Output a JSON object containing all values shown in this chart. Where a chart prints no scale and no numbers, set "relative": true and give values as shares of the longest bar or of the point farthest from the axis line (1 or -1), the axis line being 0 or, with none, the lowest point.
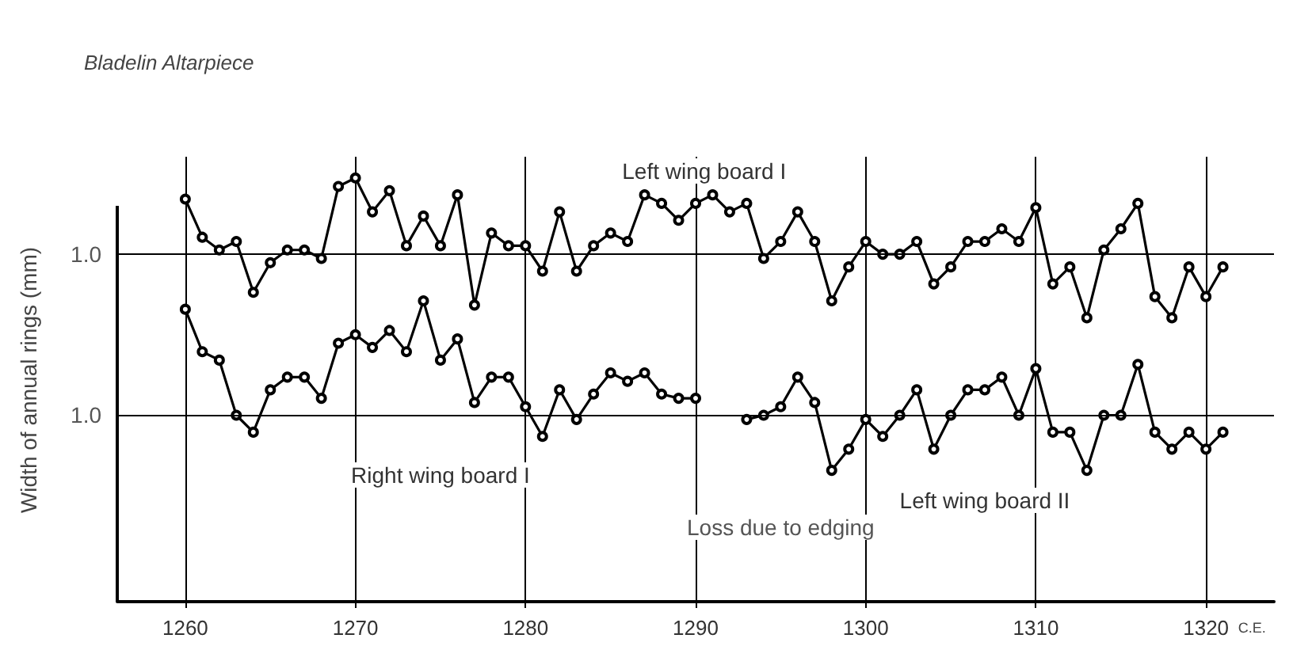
{
  "chart_data": {
    "type": "line",
    "title": "Bladelin Altarpiece",
    "ylabel": "Width of annual rings (mm)",
    "xlabel": "C.E.",
    "relative": true,
    "xlim": [
      1256,
      1324
    ],
    "xticks": [
      1260,
      1270,
      1280,
      1290,
      1300,
      1310,
      1320
    ],
    "grid": "x",
    "marker": "circle",
    "line_style": "solid",
    "legend": false,
    "ref_lines": [
      {
        "axis": "y",
        "value": 0.82,
        "color": "#000000"
      },
      {
        "axis": "y",
        "value": 0.44,
        "color": "#000000"
      }
    ],
    "annotations": [
      {
        "text": "1.0",
        "x": 1256,
        "y": 0.82
      },
      {
        "text": "1.0",
        "x": 1256,
        "y": 0.44
      },
      "Loss due to edging"
    ],
    "series": [
      {
        "name": "Left wing board I",
        "color": "#000000",
        "x": [
          1260,
          1261,
          1262,
          1263,
          1264,
          1265,
          1266,
          1267,
          1268,
          1269,
          1270,
          1271,
          1272,
          1273,
          1274,
          1275,
          1276,
          1277,
          1278,
          1279,
          1280,
          1281,
          1282,
          1283,
          1284,
          1285,
          1286,
          1287,
          1288,
          1289,
          1290,
          1291,
          1292,
          1293,
          1294,
          1295,
          1296,
          1297,
          1298,
          1299,
          1300,
          1301,
          1302,
          1303,
          1304,
          1305,
          1306,
          1307,
          1308,
          1309,
          1310,
          1311,
          1312,
          1313,
          1314,
          1315,
          1316,
          1317,
          1318,
          1319,
          1320,
          1321
        ],
        "values": [
          0.95,
          0.86,
          0.83,
          0.85,
          0.73,
          0.8,
          0.83,
          0.83,
          0.81,
          0.98,
          1,
          0.92,
          0.97,
          0.84,
          0.91,
          0.84,
          0.96,
          0.7,
          0.87,
          0.84,
          0.84,
          0.78,
          0.92,
          0.78,
          0.84,
          0.87,
          0.85,
          0.96,
          0.94,
          0.9,
          0.94,
          0.96,
          0.92,
          0.94,
          0.81,
          0.85,
          0.92,
          0.85,
          0.71,
          0.79,
          0.85,
          0.82,
          0.82,
          0.85,
          0.75,
          0.79,
          0.85,
          0.85,
          0.88,
          0.85,
          0.93,
          0.75,
          0.79,
          0.67,
          0.83,
          0.88,
          0.94,
          0.72,
          0.67,
          0.79,
          0.72,
          0.79
        ]
      },
      {
        "name": "Right wing board I",
        "color": "#000000",
        "x": [
          1260,
          1261,
          1262,
          1263,
          1264,
          1265,
          1266,
          1267,
          1268,
          1269,
          1270,
          1271,
          1272,
          1273,
          1274,
          1275,
          1276,
          1277,
          1278,
          1279,
          1280,
          1281,
          1282,
          1283,
          1284,
          1285,
          1286,
          1287,
          1288,
          1289,
          1290
        ],
        "values": [
          0.69,
          0.59,
          0.57,
          0.44,
          0.4,
          0.5,
          0.53,
          0.53,
          0.48,
          0.61,
          0.63,
          0.6,
          0.64,
          0.59,
          0.71,
          0.57,
          0.62,
          0.47,
          0.53,
          0.53,
          0.46,
          0.39,
          0.5,
          0.43,
          0.49,
          0.54,
          0.52,
          0.54,
          0.49,
          0.48,
          0.48
        ]
      },
      {
        "name": "Left wing board II",
        "color": "#000000",
        "x": [
          1293,
          1294,
          1295,
          1296,
          1297,
          1298,
          1299,
          1300,
          1301,
          1302,
          1303,
          1304,
          1305,
          1306,
          1307,
          1308,
          1309,
          1310,
          1311,
          1312,
          1313,
          1314,
          1315,
          1316,
          1317,
          1318,
          1319,
          1320,
          1321
        ],
        "values": [
          0.43,
          0.44,
          0.46,
          0.53,
          0.47,
          0.31,
          0.36,
          0.43,
          0.39,
          0.44,
          0.5,
          0.36,
          0.44,
          0.5,
          0.5,
          0.53,
          0.44,
          0.55,
          0.4,
          0.4,
          0.31,
          0.44,
          0.44,
          0.56,
          0.4,
          0.36,
          0.4,
          0.36,
          0.4
        ]
      }
    ]
  }
}
